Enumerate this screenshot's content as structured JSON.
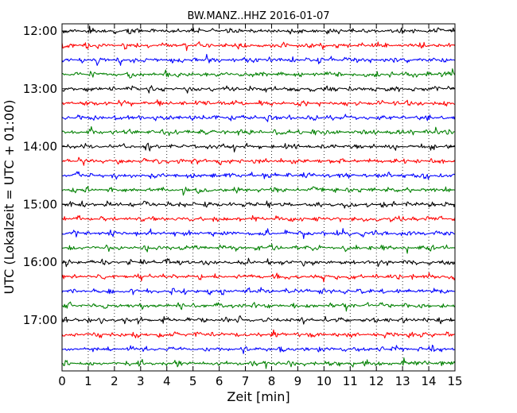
{
  "chart_data": {
    "type": "line",
    "title": "BW.MANZ..HHZ 2016-01-07",
    "xlabel": "Zeit  [min]",
    "ylabel": "UTC (Lokalzeit = UTC + 01:00)",
    "xlim": [
      0,
      15
    ],
    "x_ticks": [
      0,
      1,
      2,
      3,
      4,
      5,
      6,
      7,
      8,
      9,
      10,
      11,
      12,
      13,
      14,
      15
    ],
    "x_tick_labels": [
      "0",
      "1",
      "2",
      "3",
      "4",
      "5",
      "6",
      "7",
      "8",
      "9",
      "10",
      "11",
      "12",
      "13",
      "14",
      "15"
    ],
    "y_tick_labels": [
      "12:00",
      "13:00",
      "14:00",
      "15:00",
      "16:00",
      "17:00"
    ],
    "grid": true,
    "trace_colors": [
      "#000000",
      "#ff0000",
      "#0000ff",
      "#008000"
    ],
    "series": [
      {
        "start_utc": "12:00",
        "color": "#000000"
      },
      {
        "start_utc": "12:15",
        "color": "#ff0000"
      },
      {
        "start_utc": "12:30",
        "color": "#0000ff"
      },
      {
        "start_utc": "12:45",
        "color": "#008000"
      },
      {
        "start_utc": "13:00",
        "color": "#000000"
      },
      {
        "start_utc": "13:15",
        "color": "#ff0000"
      },
      {
        "start_utc": "13:30",
        "color": "#0000ff"
      },
      {
        "start_utc": "13:45",
        "color": "#008000"
      },
      {
        "start_utc": "14:00",
        "color": "#000000"
      },
      {
        "start_utc": "14:15",
        "color": "#ff0000"
      },
      {
        "start_utc": "14:30",
        "color": "#0000ff"
      },
      {
        "start_utc": "14:45",
        "color": "#008000"
      },
      {
        "start_utc": "15:00",
        "color": "#000000"
      },
      {
        "start_utc": "15:15",
        "color": "#ff0000"
      },
      {
        "start_utc": "15:30",
        "color": "#0000ff"
      },
      {
        "start_utc": "15:45",
        "color": "#008000"
      },
      {
        "start_utc": "16:00",
        "color": "#000000"
      },
      {
        "start_utc": "16:15",
        "color": "#ff0000"
      },
      {
        "start_utc": "16:30",
        "color": "#0000ff"
      },
      {
        "start_utc": "16:45",
        "color": "#008000"
      },
      {
        "start_utc": "17:00",
        "color": "#000000"
      },
      {
        "start_utc": "17:15",
        "color": "#ff0000"
      },
      {
        "start_utc": "17:30",
        "color": "#0000ff"
      },
      {
        "start_utc": "17:45",
        "color": "#008000"
      }
    ]
  }
}
